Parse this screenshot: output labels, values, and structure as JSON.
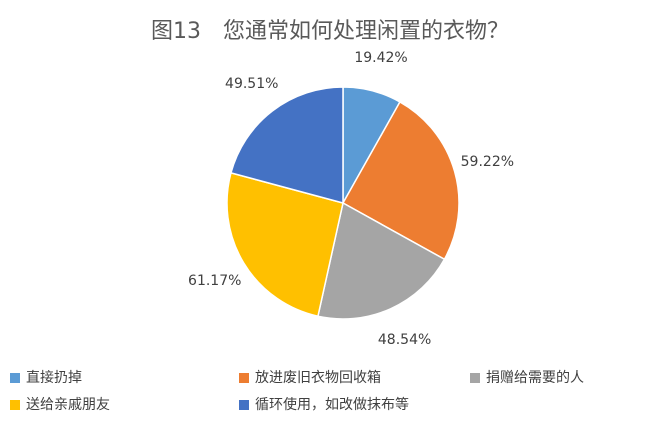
{
  "chart_data": {
    "type": "pie",
    "title": "图13　您通常如何处理闲置的衣物？",
    "categories": [
      "直接扔掉",
      "放进废旧衣物回收箱",
      "捐赠给需要的人",
      "送给亲戚朋友",
      "循环使用，如改做抹布等"
    ],
    "values": [
      19.42,
      59.22,
      48.54,
      61.17,
      49.51
    ],
    "value_labels": [
      "19.42%",
      "59.22%",
      "48.54%",
      "61.17%",
      "49.51%"
    ],
    "colors": [
      "#5b9bd5",
      "#ed7d31",
      "#a5a5a5",
      "#ffc000",
      "#4472c4"
    ]
  }
}
